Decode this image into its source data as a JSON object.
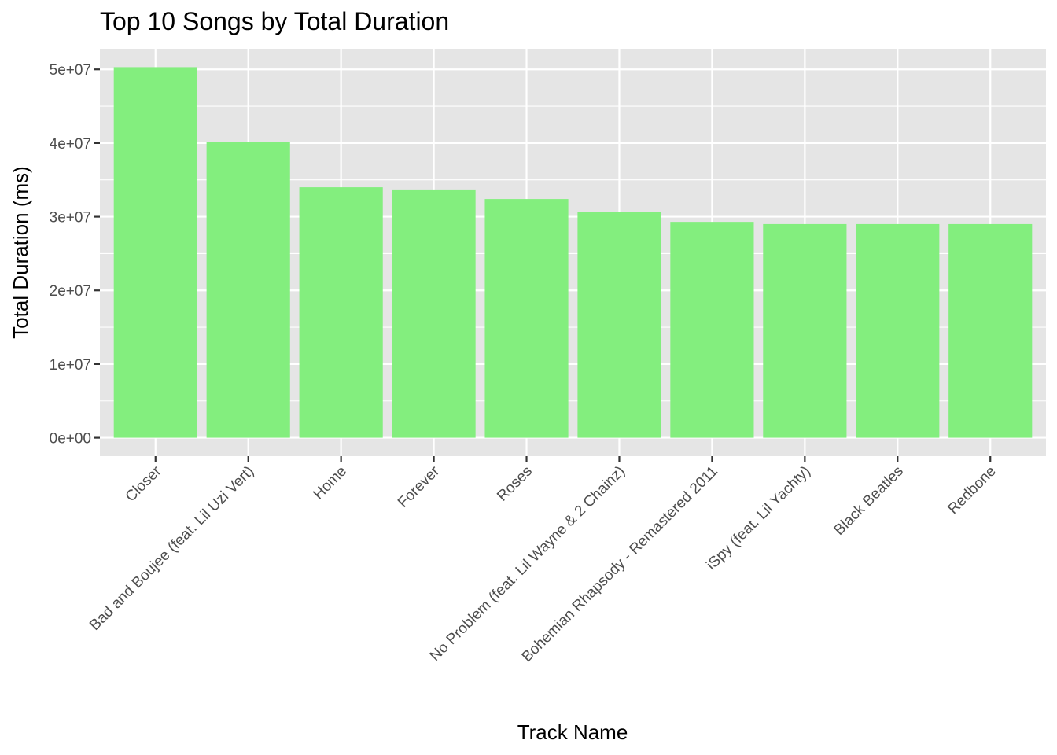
{
  "chart_data": {
    "type": "bar",
    "title": "Top 10 Songs by Total Duration",
    "xlabel": "Track Name",
    "ylabel": "Total Duration (ms)",
    "categories": [
      "Closer",
      "Bad and Boujee (feat. Lil Uzi Vert)",
      "Home",
      "Forever",
      "Roses",
      "No Problem (feat. Lil Wayne & 2 Chainz)",
      "Bohemian Rhapsody - Remastered 2011",
      "iSpy (feat. Lil Yachty)",
      "Black Beatles",
      "Redbone"
    ],
    "values": [
      50300000,
      40100000,
      34000000,
      33700000,
      32400000,
      30700000,
      29300000,
      29000000,
      29000000,
      29000000
    ],
    "ylim": [
      -2500000,
      52800000
    ],
    "yticks": [
      0,
      10000000,
      20000000,
      30000000,
      40000000,
      50000000
    ],
    "ytick_labels": [
      "0e+00",
      "1e+07",
      "2e+07",
      "3e+07",
      "4e+07",
      "5e+07"
    ],
    "grid": true,
    "bar_color": "#83EE7E",
    "panel_color": "#E5E5E5",
    "legend": "none"
  }
}
